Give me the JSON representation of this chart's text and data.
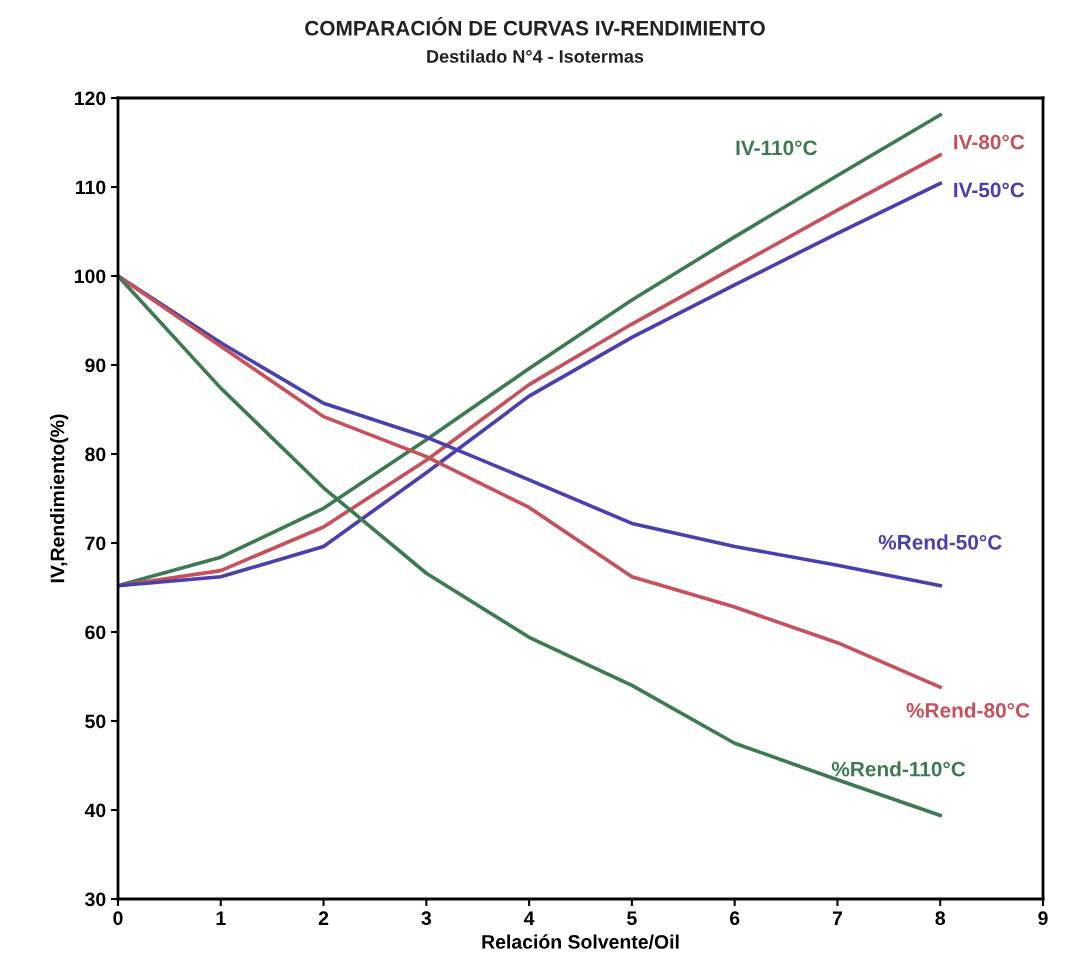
{
  "chart_data": {
    "type": "line",
    "title": "COMPARACIÓN DE CURVAS IV-RENDIMIENTO",
    "subtitle": "Destilado N°4 - Isotermas",
    "xlabel": "Relación Solvente/Oil",
    "ylabel": "IV,Rendimiento(%)",
    "x": [
      0,
      1,
      2,
      3,
      4,
      5,
      6,
      7,
      8
    ],
    "series": [
      {
        "name": "IV-110°C",
        "color": "#3d7a52",
        "values": [
          65.2,
          68.4,
          73.9,
          81.6,
          89.6,
          97.3,
          104.4,
          111.3,
          118.1
        ]
      },
      {
        "name": "IV-80°C",
        "color": "#c8505a",
        "values": [
          65.2,
          66.9,
          71.8,
          79.3,
          87.8,
          94.6,
          101.0,
          107.4,
          113.6
        ]
      },
      {
        "name": "IV-50°C",
        "color": "#4a3fb0",
        "values": [
          65.2,
          66.2,
          69.6,
          77.9,
          86.5,
          93.1,
          99.0,
          104.8,
          110.4
        ]
      },
      {
        "name": "%Rend-50°C",
        "color": "#4a3fb0",
        "values": [
          100,
          92.5,
          85.7,
          81.9,
          77.1,
          72.2,
          69.6,
          67.5,
          65.2
        ]
      },
      {
        "name": "%Rend-80°C",
        "color": "#c8505a",
        "values": [
          100,
          92.1,
          84.2,
          79.7,
          74.0,
          66.2,
          62.8,
          58.8,
          53.8
        ]
      },
      {
        "name": "%Rend-110°C",
        "color": "#3d7a52",
        "values": [
          100,
          87.4,
          76.2,
          66.6,
          59.4,
          54.0,
          47.5,
          43.4,
          39.4
        ]
      }
    ],
    "xlim": [
      0,
      9
    ],
    "xticks": [
      0,
      1,
      2,
      3,
      4,
      5,
      6,
      7,
      8,
      9
    ],
    "ylim": [
      30,
      120
    ],
    "yticks": [
      30,
      40,
      50,
      60,
      70,
      80,
      90,
      100,
      110,
      120
    ],
    "grid": false,
    "legend": false,
    "marker": "none",
    "line_style": "solid"
  }
}
